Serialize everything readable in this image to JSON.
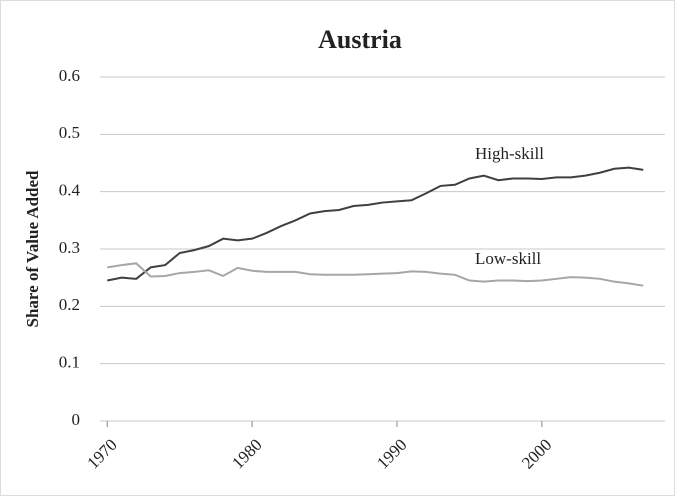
{
  "chart_data": {
    "type": "line",
    "title": "Austria",
    "y_label": "Share of Value Added",
    "x": [
      1970,
      1971,
      1972,
      1973,
      1974,
      1975,
      1976,
      1977,
      1978,
      1979,
      1980,
      1981,
      1982,
      1983,
      1984,
      1985,
      1986,
      1987,
      1988,
      1989,
      1990,
      1991,
      1992,
      1993,
      1994,
      1995,
      1996,
      1997,
      1998,
      1999,
      2000,
      2001,
      2002,
      2003,
      2004,
      2005,
      2006,
      2007
    ],
    "series": [
      {
        "name": "High-skill",
        "color": "#404040",
        "values": [
          0.245,
          0.25,
          0.248,
          0.268,
          0.272,
          0.293,
          0.298,
          0.305,
          0.318,
          0.315,
          0.318,
          0.328,
          0.34,
          0.35,
          0.362,
          0.366,
          0.368,
          0.375,
          0.377,
          0.381,
          0.383,
          0.385,
          0.397,
          0.41,
          0.412,
          0.423,
          0.428,
          0.42,
          0.423,
          0.423,
          0.422,
          0.425,
          0.425,
          0.428,
          0.433,
          0.44,
          0.442,
          0.438
        ]
      },
      {
        "name": "Low-skill",
        "color": "#a6a6a6",
        "values": [
          0.268,
          0.272,
          0.275,
          0.252,
          0.253,
          0.258,
          0.26,
          0.263,
          0.253,
          0.267,
          0.262,
          0.26,
          0.26,
          0.26,
          0.256,
          0.255,
          0.255,
          0.255,
          0.256,
          0.257,
          0.258,
          0.261,
          0.26,
          0.257,
          0.255,
          0.245,
          0.243,
          0.245,
          0.245,
          0.244,
          0.245,
          0.248,
          0.251,
          0.25,
          0.248,
          0.243,
          0.24,
          0.236
        ]
      }
    ],
    "xlim": [
      1969.5,
      2008.5
    ],
    "xticks": [
      1970,
      1980,
      1990,
      2000
    ],
    "ylim": [
      0,
      0.6
    ],
    "yticks": [
      0,
      0.1,
      0.2,
      0.3,
      0.4,
      0.5,
      0.6
    ],
    "grid": true
  }
}
